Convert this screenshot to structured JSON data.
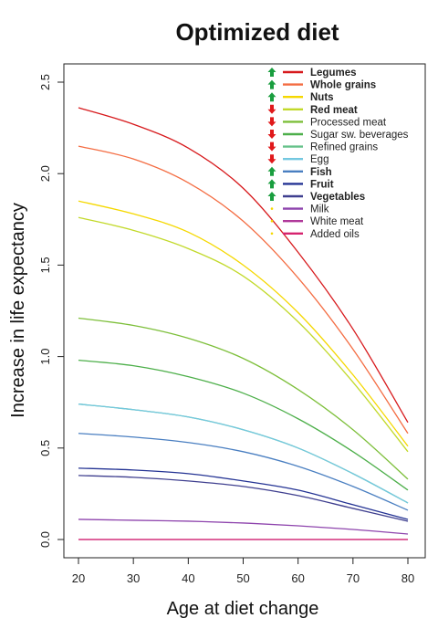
{
  "chart_data": {
    "type": "line",
    "title": "Optimized diet",
    "xlabel": "Age at diet change",
    "ylabel": "Increase in life expectancy",
    "xlim": [
      20,
      80
    ],
    "ylim": [
      0,
      2.5
    ],
    "xticks": [
      20,
      30,
      40,
      50,
      60,
      70,
      80
    ],
    "yticks": [
      0.0,
      0.5,
      1.0,
      1.5,
      2.0,
      2.5
    ],
    "ytick_labels": [
      "0.0",
      "0.5",
      "1.0",
      "1.5",
      "2.0",
      "2.5"
    ],
    "grid": false,
    "legend_position": "top-right",
    "x": [
      20,
      30,
      40,
      50,
      60,
      70,
      80
    ],
    "series": [
      {
        "name": "Legumes",
        "color": "#d7191c",
        "bold": true,
        "indicator": "up",
        "values": [
          2.36,
          2.27,
          2.14,
          1.92,
          1.57,
          1.15,
          0.64
        ]
      },
      {
        "name": "Whole grains",
        "color": "#f46d43",
        "bold": true,
        "indicator": "up",
        "values": [
          2.15,
          2.08,
          1.95,
          1.74,
          1.43,
          1.04,
          0.58
        ]
      },
      {
        "name": "Nuts",
        "color": "#f5d800",
        "bold": true,
        "indicator": "up",
        "values": [
          1.85,
          1.78,
          1.68,
          1.5,
          1.24,
          0.9,
          0.51
        ]
      },
      {
        "name": "Red meat",
        "color": "#c2d92a",
        "bold": true,
        "indicator": "down",
        "values": [
          1.76,
          1.69,
          1.59,
          1.44,
          1.19,
          0.86,
          0.48
        ]
      },
      {
        "name": "Processed meat",
        "color": "#7dbf3a",
        "bold": false,
        "indicator": "down",
        "values": [
          1.21,
          1.17,
          1.1,
          0.99,
          0.82,
          0.6,
          0.33
        ]
      },
      {
        "name": "Sugar  sw. beverages",
        "color": "#4daf4a",
        "bold": false,
        "indicator": "down",
        "values": [
          0.98,
          0.95,
          0.89,
          0.8,
          0.66,
          0.48,
          0.27
        ]
      },
      {
        "name": "Refined grains",
        "color": "#66c28a",
        "bold": false,
        "indicator": "down",
        "values": [
          0.74,
          0.71,
          0.67,
          0.6,
          0.5,
          0.36,
          0.2
        ]
      },
      {
        "name": "Egg",
        "color": "#74c8e0",
        "bold": false,
        "indicator": "down",
        "values": [
          0.74,
          0.71,
          0.67,
          0.6,
          0.5,
          0.36,
          0.2
        ]
      },
      {
        "name": "Fish",
        "color": "#4a7fc1",
        "bold": true,
        "indicator": "up",
        "values": [
          0.58,
          0.56,
          0.53,
          0.48,
          0.4,
          0.29,
          0.16
        ]
      },
      {
        "name": "Fruit",
        "color": "#253494",
        "bold": true,
        "indicator": "up",
        "values": [
          0.39,
          0.38,
          0.36,
          0.32,
          0.27,
          0.19,
          0.11
        ]
      },
      {
        "name": "Vegetables",
        "color": "#3f3f8f",
        "bold": true,
        "indicator": "up",
        "values": [
          0.35,
          0.34,
          0.32,
          0.29,
          0.24,
          0.17,
          0.1
        ]
      },
      {
        "name": "Milk",
        "color": "#8e44ad",
        "bold": false,
        "indicator": "neutral",
        "values": [
          0.11,
          0.105,
          0.1,
          0.09,
          0.075,
          0.055,
          0.03
        ]
      },
      {
        "name": "White meat",
        "color": "#b0399a",
        "bold": false,
        "indicator": "neutral",
        "values": [
          0.0,
          0.0,
          0.0,
          0.0,
          0.0,
          0.0,
          0.0
        ]
      },
      {
        "name": "Added oils",
        "color": "#d6246f",
        "bold": false,
        "indicator": "neutral",
        "values": [
          0.0,
          0.0,
          0.0,
          0.0,
          0.0,
          0.0,
          0.0
        ]
      }
    ]
  },
  "colors": {
    "arrow_up": "#1a9e3f",
    "arrow_down": "#e0191b",
    "neutral_dot": "#f5d800",
    "axis": "#222222"
  }
}
